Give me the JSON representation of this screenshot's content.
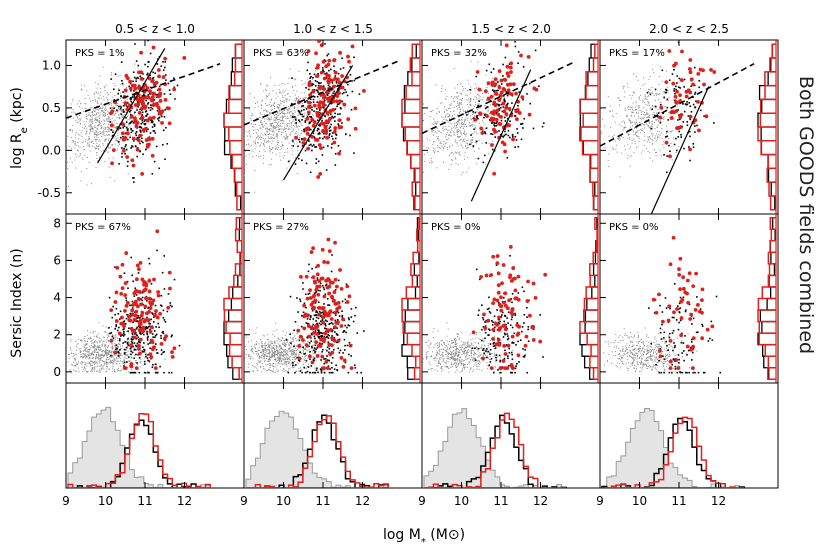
{
  "side_label": "Both GOODS fields combined",
  "chart_data": {
    "type": "scatter",
    "xlabel": "log M* (M⊙)",
    "xlim": [
      9,
      13
    ],
    "xticks": [
      "9",
      "10",
      "11",
      "12"
    ],
    "rows": [
      {
        "ylabel": "log Re (kpc)",
        "ylim": [
          -0.75,
          1.3
        ],
        "yticks": [
          "-0.5",
          "0.0",
          "0.5",
          "1.0"
        ]
      },
      {
        "ylabel": "Sersic Index (n)",
        "ylim": [
          -0.6,
          8.5
        ],
        "yticks": [
          "0",
          "2",
          "4",
          "6",
          "8"
        ]
      },
      {
        "ylabel": "",
        "ylim": [
          0,
          1
        ]
      }
    ],
    "columns": [
      {
        "title": "0.5 < z < 1.0",
        "pks_size": "PKS = 1%",
        "pks_sersic": "PKS = 67%",
        "dash": [
          [
            9.0,
            0.38
          ],
          [
            12.9,
            1.02
          ]
        ],
        "solid": [
          [
            9.8,
            -0.15
          ],
          [
            11.5,
            1.2
          ]
        ],
        "cloud_n": 700,
        "black_n": 320,
        "red_n": 120,
        "mass_black": 10.85,
        "mass_red": 10.9,
        "mass_grey": 9.9,
        "re_black_slope": 0.18,
        "n_black": 2.2,
        "n_red": 2.8
      },
      {
        "title": "1.0 < z < 1.5",
        "pks_size": "PKS = 63%",
        "pks_sersic": "PKS = 27%",
        "dash": [
          [
            9.0,
            0.3
          ],
          [
            12.9,
            1.05
          ]
        ],
        "solid": [
          [
            10.0,
            -0.35
          ],
          [
            11.75,
            1.0
          ]
        ],
        "cloud_n": 700,
        "black_n": 350,
        "red_n": 130,
        "mass_black": 10.95,
        "mass_red": 11.05,
        "mass_grey": 9.9,
        "re_black_slope": 0.2,
        "n_black": 2.3,
        "n_red": 3.0
      },
      {
        "title": "1.5 < z < 2.0",
        "pks_size": "PKS = 32%",
        "pks_sersic": "PKS = 0%",
        "dash": [
          [
            9.0,
            0.2
          ],
          [
            12.9,
            1.05
          ]
        ],
        "solid": [
          [
            10.25,
            -0.6
          ],
          [
            11.75,
            0.95
          ]
        ],
        "cloud_n": 550,
        "black_n": 180,
        "red_n": 90,
        "mass_black": 11.0,
        "mass_red": 11.1,
        "mass_grey": 9.95,
        "re_black_slope": 0.15,
        "n_black": 2.0,
        "n_red": 3.1
      },
      {
        "title": "2.0 < z < 2.5",
        "pks_size": "PKS = 17%",
        "pks_sersic": "PKS = 0%",
        "dash": [
          [
            9.0,
            0.05
          ],
          [
            12.9,
            1.02
          ]
        ],
        "solid": [
          [
            10.3,
            -0.75
          ],
          [
            11.75,
            0.75
          ]
        ],
        "cloud_n": 450,
        "black_n": 110,
        "red_n": 50,
        "mass_black": 11.0,
        "mass_red": 11.1,
        "mass_grey": 10.1,
        "re_black_slope": 0.15,
        "n_black": 1.8,
        "n_red": 3.2
      }
    ],
    "series": [
      {
        "name": "",
        "color": "#000000"
      },
      {
        "name": "",
        "color": "#e0201c"
      },
      {
        "name": "",
        "color": "#9a9a9a"
      }
    ]
  }
}
